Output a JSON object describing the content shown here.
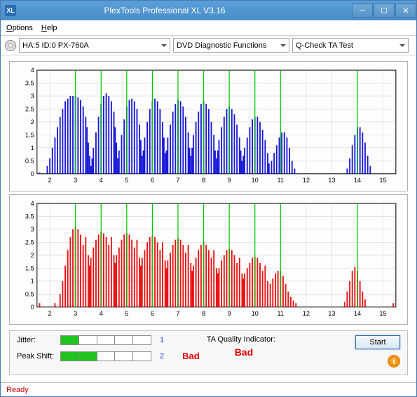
{
  "window": {
    "title": "PlexTools Professional XL V3.16",
    "icon_text": "XL"
  },
  "menu": {
    "options": "Options",
    "help": "Help"
  },
  "toolbar": {
    "drive": "HA:5 ID:0  PX-760A",
    "func": "DVD Diagnostic Functions",
    "test": "Q-Check TA Test"
  },
  "chart_top": {
    "type": "bar",
    "bar_color": "#1818d8",
    "marker_color": "#00c800",
    "bg_color": "#fdfdfd",
    "grid_color": "#d4d4d4",
    "axis_color": "#000000",
    "xlim": [
      1.5,
      15.5
    ],
    "ylim": [
      0,
      4
    ],
    "ytick_step": 0.5,
    "xticks": [
      2,
      3,
      4,
      5,
      6,
      7,
      8,
      9,
      10,
      11,
      12,
      13,
      14,
      15
    ],
    "x_markers": [
      3,
      4,
      5,
      6,
      7,
      8,
      9,
      10,
      11,
      14
    ],
    "bars": [
      [
        1.6,
        0.05
      ],
      [
        1.9,
        0.3
      ],
      [
        2.0,
        0.6
      ],
      [
        2.1,
        1.0
      ],
      [
        2.2,
        1.4
      ],
      [
        2.3,
        1.8
      ],
      [
        2.4,
        2.2
      ],
      [
        2.5,
        2.5
      ],
      [
        2.6,
        2.8
      ],
      [
        2.7,
        2.9
      ],
      [
        2.8,
        3.0
      ],
      [
        2.9,
        3.0
      ],
      [
        3.0,
        3.0
      ],
      [
        3.1,
        2.95
      ],
      [
        3.2,
        2.85
      ],
      [
        3.3,
        2.6
      ],
      [
        3.4,
        2.2
      ],
      [
        3.45,
        1.8
      ],
      [
        3.5,
        1.2
      ],
      [
        3.55,
        0.7
      ],
      [
        3.6,
        0.3
      ],
      [
        3.65,
        0.6
      ],
      [
        3.7,
        1.0
      ],
      [
        3.8,
        1.6
      ],
      [
        3.9,
        2.2
      ],
      [
        4.0,
        2.7
      ],
      [
        4.1,
        3.0
      ],
      [
        4.2,
        3.1
      ],
      [
        4.3,
        3.0
      ],
      [
        4.4,
        2.8
      ],
      [
        4.5,
        2.4
      ],
      [
        4.55,
        1.8
      ],
      [
        4.6,
        1.2
      ],
      [
        4.65,
        0.6
      ],
      [
        4.7,
        0.9
      ],
      [
        4.8,
        1.5
      ],
      [
        4.9,
        2.1
      ],
      [
        5.0,
        2.6
      ],
      [
        5.1,
        2.85
      ],
      [
        5.2,
        2.9
      ],
      [
        5.3,
        2.8
      ],
      [
        5.4,
        2.5
      ],
      [
        5.5,
        1.9
      ],
      [
        5.55,
        1.3
      ],
      [
        5.6,
        0.7
      ],
      [
        5.65,
        0.9
      ],
      [
        5.7,
        1.4
      ],
      [
        5.8,
        2.0
      ],
      [
        5.9,
        2.5
      ],
      [
        6.0,
        2.8
      ],
      [
        6.1,
        2.9
      ],
      [
        6.2,
        2.8
      ],
      [
        6.3,
        2.5
      ],
      [
        6.4,
        2.0
      ],
      [
        6.45,
        1.4
      ],
      [
        6.5,
        0.8
      ],
      [
        6.55,
        0.9
      ],
      [
        6.6,
        1.4
      ],
      [
        6.7,
        1.9
      ],
      [
        6.8,
        2.4
      ],
      [
        6.9,
        2.7
      ],
      [
        7.0,
        2.85
      ],
      [
        7.1,
        2.8
      ],
      [
        7.2,
        2.6
      ],
      [
        7.3,
        2.2
      ],
      [
        7.4,
        1.6
      ],
      [
        7.45,
        1.0
      ],
      [
        7.5,
        0.7
      ],
      [
        7.55,
        1.0
      ],
      [
        7.6,
        1.5
      ],
      [
        7.7,
        2.0
      ],
      [
        7.8,
        2.4
      ],
      [
        7.9,
        2.7
      ],
      [
        8.0,
        2.8
      ],
      [
        8.1,
        2.7
      ],
      [
        8.2,
        2.5
      ],
      [
        8.3,
        2.0
      ],
      [
        8.4,
        1.5
      ],
      [
        8.45,
        0.9
      ],
      [
        8.5,
        0.6
      ],
      [
        8.55,
        0.9
      ],
      [
        8.6,
        1.3
      ],
      [
        8.7,
        1.8
      ],
      [
        8.8,
        2.2
      ],
      [
        8.9,
        2.5
      ],
      [
        9.0,
        2.6
      ],
      [
        9.1,
        2.5
      ],
      [
        9.2,
        2.3
      ],
      [
        9.3,
        1.9
      ],
      [
        9.4,
        1.4
      ],
      [
        9.45,
        0.9
      ],
      [
        9.5,
        0.5
      ],
      [
        9.55,
        0.7
      ],
      [
        9.6,
        1.0
      ],
      [
        9.7,
        1.4
      ],
      [
        9.8,
        1.8
      ],
      [
        9.9,
        2.1
      ],
      [
        10.0,
        2.2
      ],
      [
        10.1,
        2.2
      ],
      [
        10.2,
        2.0
      ],
      [
        10.3,
        1.7
      ],
      [
        10.4,
        1.3
      ],
      [
        10.5,
        0.8
      ],
      [
        10.55,
        0.4
      ],
      [
        10.65,
        0.5
      ],
      [
        10.75,
        0.8
      ],
      [
        10.85,
        1.1
      ],
      [
        10.95,
        1.4
      ],
      [
        11.05,
        1.6
      ],
      [
        11.15,
        1.6
      ],
      [
        11.25,
        1.4
      ],
      [
        11.35,
        1.0
      ],
      [
        11.45,
        0.5
      ],
      [
        11.55,
        0.2
      ],
      [
        13.6,
        0.2
      ],
      [
        13.7,
        0.6
      ],
      [
        13.8,
        1.1
      ],
      [
        13.9,
        1.5
      ],
      [
        14.0,
        1.8
      ],
      [
        14.1,
        1.8
      ],
      [
        14.2,
        1.6
      ],
      [
        14.3,
        1.2
      ],
      [
        14.4,
        0.7
      ],
      [
        14.5,
        0.3
      ]
    ]
  },
  "chart_bottom": {
    "type": "bar",
    "bar_color": "#e81010",
    "marker_color": "#00c800",
    "bg_color": "#fdfdfd",
    "grid_color": "#d4d4d4",
    "axis_color": "#000000",
    "xlim": [
      1.5,
      15.5
    ],
    "ylim": [
      0,
      4
    ],
    "ytick_step": 0.5,
    "xticks": [
      2,
      3,
      4,
      5,
      6,
      7,
      8,
      9,
      10,
      11,
      12,
      13,
      14,
      15
    ],
    "x_markers": [
      3,
      4,
      5,
      6,
      7,
      8,
      9,
      10,
      11,
      14
    ],
    "bars": [
      [
        1.6,
        0.15
      ],
      [
        2.2,
        0.15
      ],
      [
        2.4,
        0.5
      ],
      [
        2.5,
        1.0
      ],
      [
        2.6,
        1.6
      ],
      [
        2.7,
        2.2
      ],
      [
        2.8,
        2.7
      ],
      [
        2.9,
        3.0
      ],
      [
        3.0,
        3.1
      ],
      [
        3.1,
        3.0
      ],
      [
        3.2,
        2.8
      ],
      [
        3.3,
        2.4
      ],
      [
        3.4,
        2.7
      ],
      [
        3.5,
        2.0
      ],
      [
        3.55,
        1.6
      ],
      [
        3.6,
        1.9
      ],
      [
        3.7,
        2.3
      ],
      [
        3.8,
        2.6
      ],
      [
        3.9,
        2.8
      ],
      [
        4.0,
        2.9
      ],
      [
        4.1,
        2.85
      ],
      [
        4.2,
        2.7
      ],
      [
        4.3,
        2.4
      ],
      [
        4.4,
        2.7
      ],
      [
        4.5,
        2.0
      ],
      [
        4.55,
        1.7
      ],
      [
        4.6,
        2.0
      ],
      [
        4.7,
        2.3
      ],
      [
        4.8,
        2.6
      ],
      [
        4.9,
        2.8
      ],
      [
        5.0,
        2.85
      ],
      [
        5.1,
        2.8
      ],
      [
        5.2,
        2.6
      ],
      [
        5.3,
        2.3
      ],
      [
        5.4,
        2.6
      ],
      [
        5.5,
        1.9
      ],
      [
        5.55,
        1.6
      ],
      [
        5.6,
        1.9
      ],
      [
        5.7,
        2.2
      ],
      [
        5.8,
        2.5
      ],
      [
        5.9,
        2.7
      ],
      [
        6.0,
        2.75
      ],
      [
        6.1,
        2.7
      ],
      [
        6.2,
        2.5
      ],
      [
        6.3,
        2.2
      ],
      [
        6.4,
        2.5
      ],
      [
        6.5,
        1.8
      ],
      [
        6.55,
        1.5
      ],
      [
        6.6,
        1.8
      ],
      [
        6.7,
        2.1
      ],
      [
        6.8,
        2.4
      ],
      [
        6.9,
        2.6
      ],
      [
        7.0,
        2.65
      ],
      [
        7.1,
        2.6
      ],
      [
        7.2,
        2.4
      ],
      [
        7.3,
        2.1
      ],
      [
        7.4,
        2.4
      ],
      [
        7.5,
        1.7
      ],
      [
        7.55,
        1.4
      ],
      [
        7.6,
        1.6
      ],
      [
        7.7,
        1.9
      ],
      [
        7.8,
        2.2
      ],
      [
        7.9,
        2.4
      ],
      [
        8.0,
        2.5
      ],
      [
        8.1,
        2.4
      ],
      [
        8.2,
        2.2
      ],
      [
        8.3,
        1.9
      ],
      [
        8.4,
        2.2
      ],
      [
        8.5,
        1.5
      ],
      [
        8.55,
        1.3
      ],
      [
        8.6,
        1.5
      ],
      [
        8.7,
        1.8
      ],
      [
        8.8,
        2.0
      ],
      [
        8.9,
        2.2
      ],
      [
        9.0,
        2.25
      ],
      [
        9.1,
        2.2
      ],
      [
        9.2,
        2.0
      ],
      [
        9.3,
        1.7
      ],
      [
        9.4,
        1.9
      ],
      [
        9.5,
        1.3
      ],
      [
        9.55,
        1.1
      ],
      [
        9.6,
        1.3
      ],
      [
        9.7,
        1.5
      ],
      [
        9.8,
        1.7
      ],
      [
        9.9,
        1.9
      ],
      [
        10.0,
        1.95
      ],
      [
        10.1,
        1.9
      ],
      [
        10.2,
        1.7
      ],
      [
        10.3,
        1.4
      ],
      [
        10.4,
        1.6
      ],
      [
        10.5,
        1.0
      ],
      [
        10.6,
        0.9
      ],
      [
        10.7,
        1.1
      ],
      [
        10.8,
        1.3
      ],
      [
        10.9,
        1.4
      ],
      [
        11.0,
        1.4
      ],
      [
        11.1,
        1.2
      ],
      [
        11.2,
        0.9
      ],
      [
        11.3,
        0.6
      ],
      [
        11.4,
        0.4
      ],
      [
        11.5,
        0.25
      ],
      [
        11.6,
        0.15
      ],
      [
        13.5,
        0.2
      ],
      [
        13.6,
        0.6
      ],
      [
        13.7,
        1.0
      ],
      [
        13.8,
        1.4
      ],
      [
        13.9,
        1.55
      ],
      [
        14.0,
        1.4
      ],
      [
        14.1,
        1.0
      ],
      [
        14.2,
        0.6
      ],
      [
        14.3,
        0.3
      ],
      [
        15.4,
        0.15
      ]
    ]
  },
  "bottom": {
    "jitter_label": "Jitter:",
    "peakshift_label": "Peak Shift:",
    "jitter_segments": [
      true,
      false,
      false,
      false,
      false
    ],
    "peakshift_segments": [
      true,
      true,
      false,
      false,
      false
    ],
    "jitter_value": "1",
    "peakshift_value": "2",
    "bad_text": "Bad",
    "taq_label": "TA Quality Indicator:",
    "taq_value": "Bad",
    "start_label": "Start"
  },
  "status": {
    "text": "Ready"
  }
}
